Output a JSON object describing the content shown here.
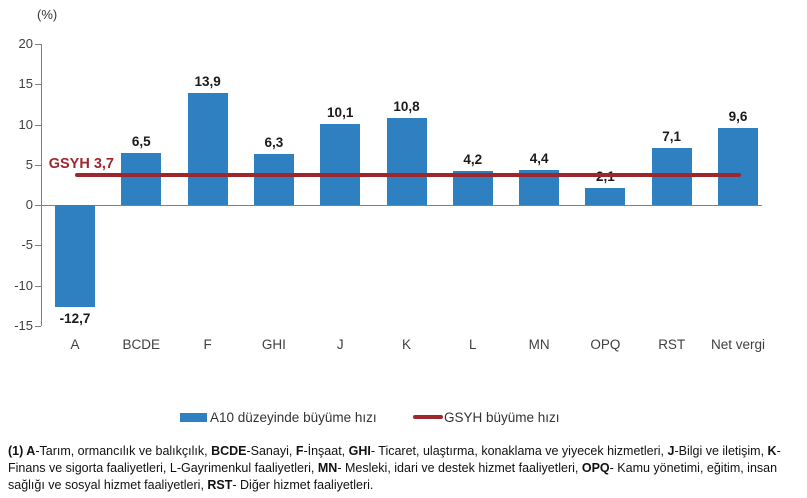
{
  "chart_data": {
    "type": "bar",
    "title": "",
    "unit_label": "(%)",
    "categories": [
      "A",
      "BCDE",
      "F",
      "GHI",
      "J",
      "K",
      "L",
      "MN",
      "OPQ",
      "RST",
      "Net vergi"
    ],
    "values": [
      -12.7,
      6.5,
      13.9,
      6.3,
      10.1,
      10.8,
      4.2,
      4.4,
      2.1,
      7.1,
      9.6
    ],
    "value_labels": [
      "-12,7",
      "6,5",
      "13,9",
      "6,3",
      "10,1",
      "10,8",
      "4,2",
      "4,4",
      "2,1",
      "7,1",
      "9,6"
    ],
    "reference_line": {
      "value": 3.7,
      "label": "GSYH 3,7"
    },
    "ylim": [
      -15,
      20
    ],
    "yticks": [
      20,
      15,
      10,
      5,
      0,
      -5,
      -10,
      -15
    ],
    "grid": false,
    "legend": {
      "position": "bottom",
      "items": [
        {
          "label": "A10 düzeyinde büyüme hızı",
          "type": "bar",
          "color": "#2E80C1"
        },
        {
          "label": "GSYH büyüme hızı",
          "type": "line",
          "color": "#9E262D"
        }
      ]
    },
    "colors": {
      "bar": "#2E80C1",
      "reference": "#9E262D",
      "axis": "#808080",
      "text": "#404040",
      "value_text": "#1a1a1a"
    }
  },
  "footnote": {
    "segments": [
      {
        "t": "(1) ",
        "b": true
      },
      {
        "t": "A",
        "b": true
      },
      {
        "t": "-Tarım, ormancılık ve balıkçılık, ",
        "b": false
      },
      {
        "t": "BCDE",
        "b": true
      },
      {
        "t": "-Sanayi, ",
        "b": false
      },
      {
        "t": "F",
        "b": true
      },
      {
        "t": "-İnşaat, ",
        "b": false
      },
      {
        "t": "GHI",
        "b": true
      },
      {
        "t": "- Ticaret, ulaştırma, konaklama ve yiyecek hizmetleri, ",
        "b": false
      },
      {
        "t": "J",
        "b": true
      },
      {
        "t": "-Bilgi ve iletişim, ",
        "b": false
      },
      {
        "t": "K",
        "b": true
      },
      {
        "t": "-Finans ve sigorta faaliyetleri, L-Gayrimenkul faaliyetleri, ",
        "b": false
      },
      {
        "t": "MN",
        "b": true
      },
      {
        "t": "- Mesleki, idari ve destek hizmet faaliyetleri, ",
        "b": false
      },
      {
        "t": "OPQ",
        "b": true
      },
      {
        "t": "- Kamu yönetimi, eğitim, insan sağlığı ve sosyal hizmet faaliyetleri, ",
        "b": false
      },
      {
        "t": "RST",
        "b": true
      },
      {
        "t": "- Diğer hizmet faaliyetleri.",
        "b": false
      }
    ]
  }
}
